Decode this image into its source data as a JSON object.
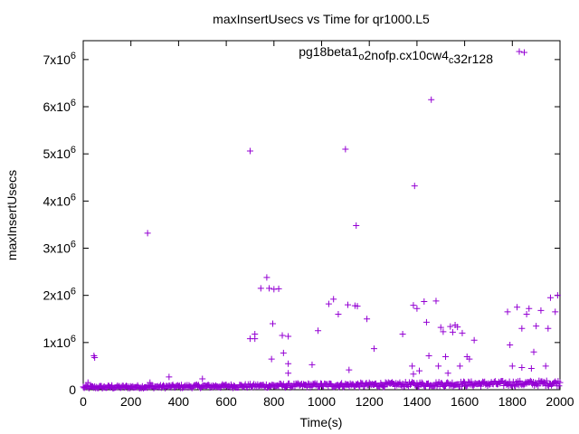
{
  "chart_data": {
    "type": "scatter",
    "title": "maxInsertUsecs vs Time for qr1000.L5",
    "xlabel": "Time(s)",
    "ylabel": "maxInsertUsecs",
    "xlim": [
      0,
      2000
    ],
    "ylim": [
      0,
      7400000
    ],
    "x_ticks": [
      0,
      200,
      400,
      600,
      800,
      1000,
      1200,
      1400,
      1600,
      1800,
      2000
    ],
    "x_tick_labels": [
      "0",
      "200",
      "400",
      "600",
      "800",
      "1000",
      "1200",
      "1400",
      "1600",
      "1800",
      "2000"
    ],
    "y_ticks": [
      0,
      1000000,
      2000000,
      3000000,
      4000000,
      5000000,
      6000000,
      7000000
    ],
    "y_tick_labels": [
      {
        "base": "0",
        "exp": ""
      },
      {
        "base": "1x10",
        "exp": "6"
      },
      {
        "base": "2x10",
        "exp": "6"
      },
      {
        "base": "3x10",
        "exp": "6"
      },
      {
        "base": "4x10",
        "exp": "6"
      },
      {
        "base": "5x10",
        "exp": "6"
      },
      {
        "base": "6x10",
        "exp": "6"
      },
      {
        "base": "7x10",
        "exp": "6"
      }
    ],
    "legend": {
      "position": "top-right",
      "parts": [
        {
          "text": "pg18beta1",
          "sub": false
        },
        {
          "text": "o",
          "sub": true
        },
        {
          "text": "2nofp.cx10cw4",
          "sub": false
        },
        {
          "text": "c",
          "sub": true
        },
        {
          "text": "32r128",
          "sub": false
        }
      ]
    },
    "series": [
      {
        "name": "pg18beta1_o2nofp.cx10cw4_c32r128",
        "color": "#9400d3",
        "marker": "plus",
        "baseline_band": {
          "x_range": [
            0,
            2000
          ],
          "y_start": [
            20000,
            80000
          ],
          "y_end": [
            80000,
            200000
          ]
        },
        "points": [
          [
            20,
            150000
          ],
          [
            45,
            720000
          ],
          [
            48,
            680000
          ],
          [
            120,
            90000
          ],
          [
            270,
            3320000
          ],
          [
            280,
            150000
          ],
          [
            360,
            270000
          ],
          [
            500,
            230000
          ],
          [
            700,
            5060000
          ],
          [
            700,
            1080000
          ],
          [
            720,
            1080000
          ],
          [
            720,
            1180000
          ],
          [
            745,
            2150000
          ],
          [
            770,
            2380000
          ],
          [
            780,
            2150000
          ],
          [
            790,
            650000
          ],
          [
            795,
            1400000
          ],
          [
            800,
            2130000
          ],
          [
            820,
            2140000
          ],
          [
            835,
            1150000
          ],
          [
            840,
            780000
          ],
          [
            860,
            550000
          ],
          [
            860,
            1130000
          ],
          [
            860,
            350000
          ],
          [
            960,
            530000
          ],
          [
            985,
            1250000
          ],
          [
            1030,
            1820000
          ],
          [
            1050,
            1920000
          ],
          [
            1070,
            1600000
          ],
          [
            1100,
            5100000
          ],
          [
            1110,
            1800000
          ],
          [
            1115,
            420000
          ],
          [
            1140,
            1780000
          ],
          [
            1145,
            3480000
          ],
          [
            1150,
            1770000
          ],
          [
            1190,
            1500000
          ],
          [
            1220,
            870000
          ],
          [
            1340,
            1180000
          ],
          [
            1380,
            500000
          ],
          [
            1385,
            1790000
          ],
          [
            1385,
            330000
          ],
          [
            1390,
            4320000
          ],
          [
            1400,
            1720000
          ],
          [
            1410,
            400000
          ],
          [
            1430,
            1870000
          ],
          [
            1440,
            1430000
          ],
          [
            1450,
            720000
          ],
          [
            1460,
            6150000
          ],
          [
            1480,
            1880000
          ],
          [
            1490,
            500000
          ],
          [
            1500,
            1320000
          ],
          [
            1510,
            1230000
          ],
          [
            1520,
            700000
          ],
          [
            1530,
            350000
          ],
          [
            1540,
            1340000
          ],
          [
            1550,
            1220000
          ],
          [
            1560,
            1370000
          ],
          [
            1570,
            1330000
          ],
          [
            1580,
            500000
          ],
          [
            1590,
            1200000
          ],
          [
            1610,
            700000
          ],
          [
            1620,
            650000
          ],
          [
            1640,
            1050000
          ],
          [
            1780,
            1650000
          ],
          [
            1790,
            950000
          ],
          [
            1800,
            500000
          ],
          [
            1820,
            1750000
          ],
          [
            1840,
            470000
          ],
          [
            1840,
            1300000
          ],
          [
            1850,
            7150000
          ],
          [
            1860,
            1600000
          ],
          [
            1870,
            1720000
          ],
          [
            1880,
            450000
          ],
          [
            1890,
            800000
          ],
          [
            1900,
            1350000
          ],
          [
            1920,
            1680000
          ],
          [
            1940,
            500000
          ],
          [
            1950,
            1300000
          ],
          [
            1960,
            1950000
          ],
          [
            1980,
            1650000
          ],
          [
            1990,
            2000000
          ]
        ]
      }
    ]
  }
}
